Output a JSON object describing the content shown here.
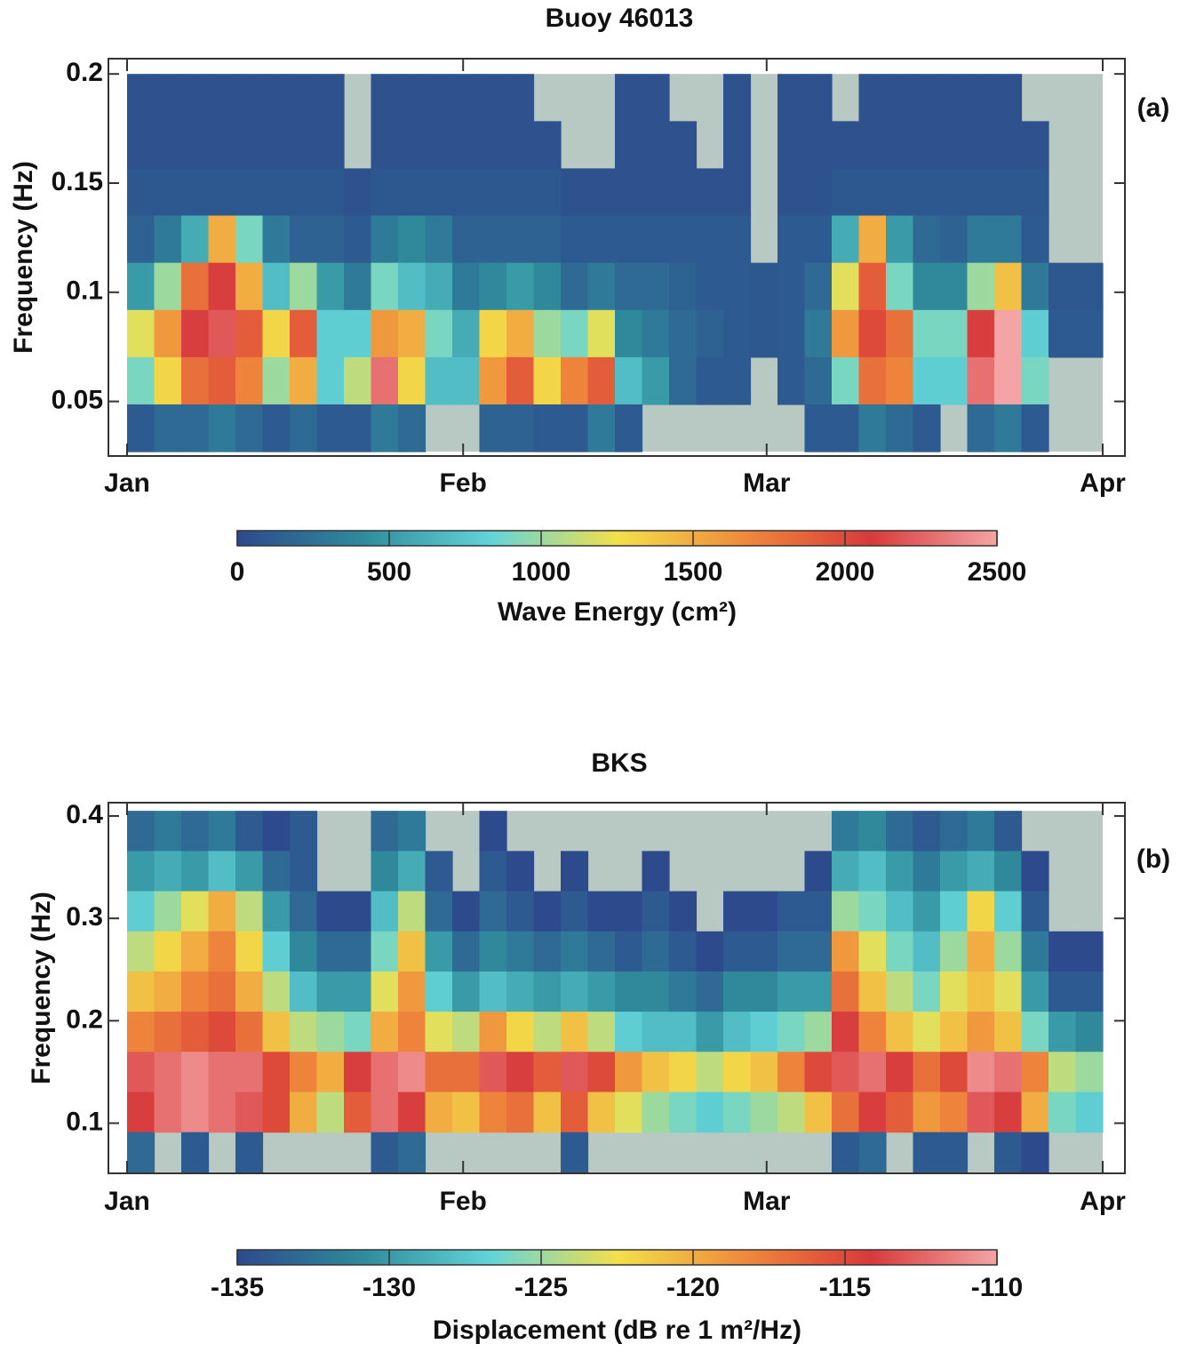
{
  "chart_data": [
    {
      "type": "heatmap",
      "title": "Buoy  46013",
      "panel_label": "(a)",
      "ylabel": "Frequency  (Hz)",
      "xlim": [
        0,
        90
      ],
      "xticks": [
        {
          "value": 0,
          "label": "Jan"
        },
        {
          "value": 31,
          "label": "Feb"
        },
        {
          "value": 59,
          "label": "Mar"
        },
        {
          "value": 90,
          "label": "Apr"
        }
      ],
      "ylim": [
        0.025,
        0.207
      ],
      "yticks": [
        0.05,
        0.1,
        0.15,
        0.2
      ],
      "z_x": [
        0,
        90
      ],
      "z_y": [
        0.027,
        0.2
      ],
      "missing_color": "#b8c8c2",
      "colormap": [
        "#2d4a8c",
        "#2f8c9c",
        "#62d4d8",
        "#f2e04a",
        "#f08a3c",
        "#d83a3a",
        "#f4a4a4"
      ],
      "colorbar": {
        "label": "Wave Energy  (cm²)",
        "lim": [
          0,
          2500
        ],
        "ticks": [
          0,
          500,
          1000,
          1500,
          2000,
          2500
        ]
      },
      "z": [
        [
          50,
          50,
          50,
          50,
          50,
          50,
          50,
          50,
          null,
          50,
          50,
          50,
          50,
          50,
          50,
          null,
          null,
          null,
          50,
          50,
          null,
          null,
          50,
          null,
          50,
          50,
          null,
          50,
          50,
          50,
          50,
          50,
          50,
          null,
          null,
          null
        ],
        [
          50,
          50,
          50,
          50,
          50,
          50,
          50,
          50,
          null,
          50,
          50,
          50,
          50,
          50,
          50,
          50,
          null,
          null,
          50,
          50,
          50,
          null,
          50,
          null,
          50,
          50,
          50,
          50,
          50,
          50,
          50,
          50,
          50,
          50,
          null,
          null
        ],
        [
          80,
          80,
          80,
          80,
          80,
          80,
          80,
          80,
          50,
          80,
          80,
          80,
          80,
          80,
          80,
          80,
          50,
          50,
          50,
          50,
          50,
          50,
          50,
          null,
          50,
          50,
          80,
          80,
          80,
          80,
          80,
          80,
          80,
          80,
          null,
          null
        ],
        [
          150,
          300,
          600,
          1500,
          900,
          300,
          150,
          150,
          100,
          300,
          400,
          300,
          150,
          150,
          150,
          150,
          100,
          100,
          100,
          100,
          100,
          100,
          100,
          null,
          100,
          100,
          600,
          1500,
          500,
          200,
          150,
          300,
          300,
          100,
          null,
          null
        ],
        [
          500,
          1000,
          1800,
          2100,
          1500,
          700,
          1000,
          500,
          300,
          900,
          700,
          600,
          300,
          400,
          500,
          400,
          200,
          300,
          200,
          200,
          150,
          100,
          100,
          80,
          100,
          200,
          1200,
          1900,
          900,
          400,
          400,
          1000,
          1400,
          300,
          80,
          80
        ],
        [
          1200,
          1600,
          2100,
          2200,
          1900,
          1300,
          1900,
          800,
          800,
          1600,
          1500,
          900,
          600,
          1300,
          1500,
          1000,
          900,
          1200,
          400,
          300,
          200,
          150,
          100,
          80,
          100,
          300,
          1600,
          2000,
          1800,
          900,
          900,
          2100,
          2500,
          800,
          100,
          100
        ],
        [
          900,
          1300,
          1800,
          1900,
          1700,
          1000,
          1500,
          800,
          1100,
          2300,
          1300,
          700,
          700,
          1600,
          1900,
          1300,
          1700,
          1900,
          700,
          500,
          200,
          100,
          100,
          null,
          100,
          200,
          900,
          1800,
          1700,
          800,
          800,
          2300,
          2500,
          900,
          null,
          null
        ],
        [
          100,
          200,
          200,
          300,
          200,
          100,
          200,
          100,
          100,
          300,
          200,
          null,
          null,
          150,
          150,
          100,
          100,
          300,
          100,
          null,
          null,
          null,
          null,
          null,
          null,
          100,
          100,
          300,
          200,
          100,
          null,
          200,
          300,
          100,
          null,
          null
        ]
      ]
    },
    {
      "type": "heatmap",
      "title": "BKS",
      "panel_label": "(b)",
      "ylabel": "Frequency  (Hz)",
      "xlim": [
        0,
        90
      ],
      "xticks": [
        {
          "value": 0,
          "label": "Jan"
        },
        {
          "value": 31,
          "label": "Feb"
        },
        {
          "value": 59,
          "label": "Mar"
        },
        {
          "value": 90,
          "label": "Apr"
        }
      ],
      "ylim": [
        0.051,
        0.413
      ],
      "yticks": [
        0.1,
        0.2,
        0.3,
        0.4
      ],
      "z_x": [
        0,
        90
      ],
      "z_y": [
        0.052,
        0.405
      ],
      "missing_color": "#b8c8c2",
      "colormap": [
        "#2d4a8c",
        "#2f8c9c",
        "#62d4d8",
        "#f2e04a",
        "#f08a3c",
        "#d83a3a",
        "#f4a4a4"
      ],
      "colorbar": {
        "label": "Displacement  (dB re 1 m²/Hz)",
        "lim": [
          -135,
          -110
        ],
        "ticks": [
          -135,
          -130,
          -125,
          -120,
          -115,
          -110
        ]
      },
      "z": [
        [
          -133,
          -132,
          -133,
          -132,
          -134,
          -135,
          -134,
          null,
          null,
          -133,
          -132,
          null,
          null,
          -135,
          null,
          null,
          null,
          null,
          null,
          null,
          null,
          null,
          null,
          null,
          null,
          null,
          -132,
          -131,
          -133,
          -134,
          -133,
          -132,
          -134,
          null,
          null,
          null
        ],
        [
          -130,
          -129,
          -130,
          -128,
          -130,
          -133,
          -134,
          null,
          null,
          -131,
          -129,
          -134,
          null,
          -134,
          -135,
          null,
          -135,
          null,
          null,
          -135,
          null,
          null,
          null,
          null,
          null,
          -135,
          -129,
          -128,
          -130,
          -132,
          -130,
          -129,
          -131,
          -135,
          null,
          null
        ],
        [
          -127,
          -125,
          -123,
          -120,
          -124,
          -130,
          -133,
          -135,
          -135,
          -128,
          -124,
          -133,
          -135,
          -133,
          -134,
          -135,
          -134,
          -135,
          -135,
          -134,
          -135,
          null,
          -135,
          -135,
          -134,
          -134,
          -125,
          -126,
          -128,
          -130,
          -127,
          -122,
          -127,
          -134,
          null,
          null
        ],
        [
          -124,
          -122,
          -120,
          -118,
          -122,
          -127,
          -131,
          -133,
          -133,
          -126,
          -121,
          -130,
          -133,
          -131,
          -132,
          -133,
          -132,
          -133,
          -134,
          -133,
          -134,
          -135,
          -134,
          -134,
          -133,
          -133,
          -119,
          -123,
          -126,
          -128,
          -125,
          -120,
          -125,
          -132,
          -135,
          -135
        ],
        [
          -121,
          -120,
          -118,
          -117,
          -120,
          -124,
          -128,
          -130,
          -130,
          -123,
          -119,
          -127,
          -130,
          -128,
          -129,
          -130,
          -129,
          -130,
          -131,
          -131,
          -132,
          -133,
          -131,
          -131,
          -130,
          -130,
          -117,
          -121,
          -124,
          -126,
          -123,
          -121,
          -123,
          -130,
          -134,
          -134
        ],
        [
          -118,
          -117,
          -116,
          -115,
          -117,
          -121,
          -124,
          -125,
          -126,
          -120,
          -118,
          -123,
          -124,
          -119,
          -122,
          -124,
          -121,
          -124,
          -127,
          -128,
          -128,
          -130,
          -128,
          -127,
          -126,
          -125,
          -114,
          -118,
          -121,
          -123,
          -121,
          -119,
          -121,
          -126,
          -130,
          -131
        ],
        [
          -113,
          -112,
          -111,
          -112,
          -112,
          -115,
          -118,
          -120,
          -114,
          -112,
          -111,
          -117,
          -117,
          -113,
          -114,
          -116,
          -113,
          -115,
          -119,
          -121,
          -122,
          -124,
          -122,
          -121,
          -118,
          -115,
          -113,
          -112,
          -114,
          -117,
          -115,
          -111,
          -112,
          -118,
          -124,
          -125
        ],
        [
          -114,
          -112,
          -111,
          -112,
          -113,
          -115,
          -120,
          -124,
          -116,
          -112,
          -114,
          -120,
          -121,
          -118,
          -117,
          -121,
          -116,
          -121,
          -123,
          -125,
          -126,
          -127,
          -126,
          -125,
          -124,
          -121,
          -117,
          -114,
          -116,
          -119,
          -118,
          -113,
          -114,
          -120,
          -126,
          -127
        ],
        [
          -133,
          null,
          -134,
          null,
          -134,
          null,
          null,
          null,
          null,
          -134,
          -133,
          null,
          null,
          null,
          null,
          null,
          -134,
          null,
          null,
          null,
          null,
          null,
          null,
          null,
          null,
          null,
          -134,
          -133,
          null,
          -134,
          -134,
          null,
          -134,
          -135,
          null,
          null
        ]
      ]
    }
  ]
}
